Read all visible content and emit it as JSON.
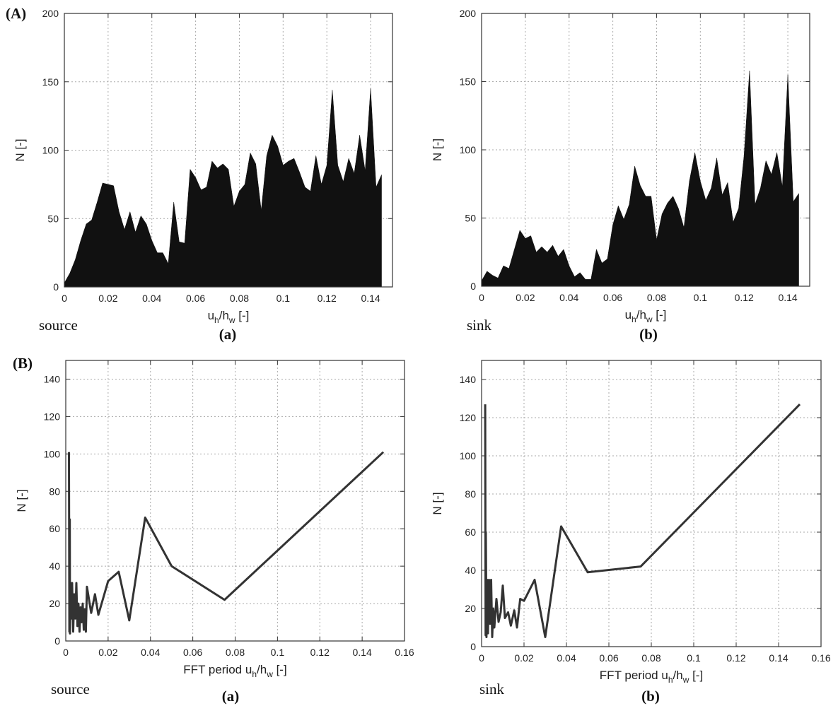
{
  "panel_labels": [
    "(A)",
    "(B)"
  ],
  "chart_data": [
    {
      "type": "area",
      "xlabel": [
        "u",
        "h",
        "/h",
        "w",
        " [-]"
      ],
      "ylabel": "N [-]",
      "annotation": "source",
      "caption": "(a)",
      "color": "#111111",
      "grid": true,
      "xlim": [
        0,
        0.15
      ],
      "xticks": [
        0,
        0.02,
        0.04,
        0.06,
        0.08,
        0.1,
        0.12,
        0.14
      ],
      "ylim": [
        0,
        200
      ],
      "yticks": [
        0,
        50,
        100,
        150,
        200
      ],
      "x": [
        0,
        0.0025,
        0.005,
        0.0075,
        0.01,
        0.0125,
        0.015,
        0.0175,
        0.02,
        0.0225,
        0.025,
        0.0275,
        0.03,
        0.0325,
        0.035,
        0.0375,
        0.04,
        0.0425,
        0.045,
        0.0475,
        0.05,
        0.0525,
        0.055,
        0.0575,
        0.06,
        0.0625,
        0.065,
        0.0675,
        0.07,
        0.0725,
        0.075,
        0.0775,
        0.08,
        0.0825,
        0.085,
        0.0875,
        0.09,
        0.0925,
        0.095,
        0.0975,
        0.1,
        0.1025,
        0.105,
        0.1075,
        0.11,
        0.1125,
        0.115,
        0.1175,
        0.12,
        0.1225,
        0.125,
        0.1275,
        0.13,
        0.1325,
        0.135,
        0.1375,
        0.14,
        0.1425,
        0.145
      ],
      "values": [
        3,
        10,
        20,
        34,
        46,
        49,
        62,
        76,
        75,
        74,
        55,
        42,
        55,
        40,
        52,
        46,
        34,
        25,
        25,
        17,
        62,
        33,
        32,
        86,
        80,
        71,
        73,
        92,
        87,
        90,
        86,
        59,
        70,
        75,
        98,
        90,
        56,
        96,
        111,
        103,
        89,
        92,
        94,
        84,
        73,
        70,
        96,
        75,
        89,
        144,
        89,
        77,
        94,
        83,
        111,
        85,
        145,
        73,
        82
      ]
    },
    {
      "type": "area",
      "xlabel": [
        "u",
        "h",
        "/h",
        "w",
        " [-]"
      ],
      "ylabel": "N [-]",
      "annotation": "sink",
      "caption": "(b)",
      "color": "#111111",
      "grid": true,
      "xlim": [
        0,
        0.15
      ],
      "xticks": [
        0,
        0.02,
        0.04,
        0.06,
        0.08,
        0.1,
        0.12,
        0.14
      ],
      "ylim": [
        0,
        200
      ],
      "yticks": [
        0,
        50,
        100,
        150,
        200
      ],
      "x": [
        0,
        0.0025,
        0.005,
        0.0075,
        0.01,
        0.0125,
        0.015,
        0.0175,
        0.02,
        0.0225,
        0.025,
        0.0275,
        0.03,
        0.0325,
        0.035,
        0.0375,
        0.04,
        0.0425,
        0.045,
        0.0475,
        0.05,
        0.0525,
        0.055,
        0.0575,
        0.06,
        0.0625,
        0.065,
        0.0675,
        0.07,
        0.0725,
        0.075,
        0.0775,
        0.08,
        0.0825,
        0.085,
        0.0875,
        0.09,
        0.0925,
        0.095,
        0.0975,
        0.1,
        0.1025,
        0.105,
        0.1075,
        0.11,
        0.1125,
        0.115,
        0.1175,
        0.12,
        0.1225,
        0.125,
        0.1275,
        0.13,
        0.1325,
        0.135,
        0.1375,
        0.14,
        0.1425,
        0.145
      ],
      "values": [
        4,
        11,
        8,
        6,
        15,
        13,
        27,
        41,
        35,
        37,
        25,
        29,
        25,
        30,
        22,
        27,
        15,
        7,
        10,
        5,
        5,
        27,
        17,
        20,
        45,
        59,
        49,
        60,
        88,
        74,
        66,
        66,
        34,
        53,
        61,
        66,
        57,
        43,
        77,
        98,
        77,
        63,
        72,
        94,
        67,
        76,
        47,
        57,
        96,
        158,
        60,
        72,
        92,
        82,
        98,
        73,
        155,
        62,
        68
      ]
    },
    {
      "type": "line",
      "xlabel": [
        "FFT period  u",
        "h",
        "/h",
        "w",
        " [-]"
      ],
      "ylabel": "N [-]",
      "annotation": "source",
      "caption": "(a)",
      "color": "#333333",
      "grid": true,
      "xlim": [
        0,
        0.16
      ],
      "xticks": [
        0,
        0.02,
        0.04,
        0.06,
        0.08,
        0.1,
        0.12,
        0.14,
        0.16
      ],
      "ylim": [
        0,
        150
      ],
      "yticks": [
        0,
        20,
        40,
        60,
        80,
        100,
        120,
        140
      ],
      "x": [
        0.0015,
        0.0017,
        0.0019,
        0.002,
        0.0023,
        0.0026,
        0.003,
        0.0035,
        0.004,
        0.0045,
        0.005,
        0.0055,
        0.006,
        0.0065,
        0.007,
        0.0075,
        0.008,
        0.0085,
        0.009,
        0.0095,
        0.01,
        0.012,
        0.0138,
        0.0154,
        0.02,
        0.025,
        0.03,
        0.0375,
        0.05,
        0.075,
        0.15
      ],
      "values": [
        101,
        5,
        65,
        4,
        31,
        12,
        31,
        5,
        25,
        12,
        31,
        8,
        20,
        5,
        18,
        10,
        20,
        6,
        17,
        5,
        29,
        15,
        25,
        14,
        32,
        37,
        11,
        66,
        40,
        22,
        101
      ]
    },
    {
      "type": "line",
      "xlabel": [
        "FFT period  u",
        "h",
        "/h",
        "w",
        " [-]"
      ],
      "ylabel": "N [-]",
      "annotation": "sink",
      "caption": "(b)",
      "color": "#333333",
      "grid": true,
      "xlim": [
        0,
        0.16
      ],
      "xticks": [
        0,
        0.02,
        0.04,
        0.06,
        0.08,
        0.1,
        0.12,
        0.14,
        0.16
      ],
      "ylim": [
        0,
        150
      ],
      "yticks": [
        0,
        20,
        40,
        60,
        80,
        100,
        120,
        140
      ],
      "x": [
        0.0017,
        0.0019,
        0.002,
        0.0023,
        0.0026,
        0.003,
        0.0035,
        0.004,
        0.0045,
        0.005,
        0.0055,
        0.006,
        0.007,
        0.008,
        0.009,
        0.01,
        0.011,
        0.0125,
        0.0138,
        0.0154,
        0.0167,
        0.0182,
        0.02,
        0.025,
        0.03,
        0.0375,
        0.05,
        0.075,
        0.15
      ],
      "values": [
        127,
        6,
        60,
        5,
        35,
        7,
        35,
        12,
        35,
        5,
        20,
        10,
        25,
        13,
        18,
        32,
        15,
        18,
        11,
        19,
        10,
        25,
        24,
        35,
        5,
        63,
        39,
        42,
        127
      ]
    }
  ]
}
